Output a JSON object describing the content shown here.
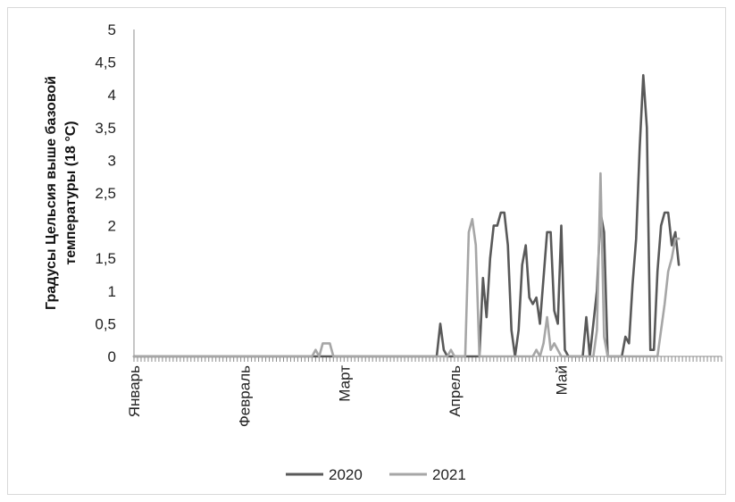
{
  "chart_data": {
    "type": "line",
    "title": "",
    "ylabel_lines": [
      "Градусы Цельсия выше базовой",
      "температуры (18 °С)"
    ],
    "xlabel": "",
    "ylim": [
      0,
      5
    ],
    "y_ticks": [
      "0",
      "0,5",
      "1",
      "1,5",
      "2",
      "2,5",
      "3",
      "3,5",
      "4",
      "4,5",
      "5"
    ],
    "x_range": [
      1,
      166
    ],
    "x_tick_labels": [
      {
        "label": "Январь",
        "day": 1
      },
      {
        "label": "Февраль",
        "day": 32
      },
      {
        "label": "Март",
        "day": 60
      },
      {
        "label": "Апрель",
        "day": 91
      },
      {
        "label": "Май",
        "day": 121
      }
    ],
    "grid": false,
    "legend_position": "bottom",
    "series": [
      {
        "name": "2020",
        "color": "#595959",
        "points": [
          [
            1,
            0
          ],
          [
            86,
            0
          ],
          [
            87,
            0.5
          ],
          [
            88,
            0.1
          ],
          [
            89,
            0
          ],
          [
            90,
            0
          ],
          [
            91,
            0
          ],
          [
            92,
            0
          ],
          [
            93,
            0
          ],
          [
            94,
            0
          ],
          [
            95,
            0
          ],
          [
            96,
            0
          ],
          [
            97,
            0
          ],
          [
            98,
            0
          ],
          [
            99,
            1.2
          ],
          [
            100,
            0.6
          ],
          [
            101,
            1.5
          ],
          [
            102,
            2
          ],
          [
            103,
            2
          ],
          [
            104,
            2.2
          ],
          [
            105,
            2.2
          ],
          [
            106,
            1.7
          ],
          [
            107,
            0.4
          ],
          [
            108,
            0
          ],
          [
            109,
            0.4
          ],
          [
            110,
            1.4
          ],
          [
            111,
            1.7
          ],
          [
            112,
            0.9
          ],
          [
            113,
            0.8
          ],
          [
            114,
            0.9
          ],
          [
            115,
            0.5
          ],
          [
            116,
            1.2
          ],
          [
            117,
            1.9
          ],
          [
            118,
            1.9
          ],
          [
            119,
            0.7
          ],
          [
            120,
            0.5
          ],
          [
            121,
            2
          ],
          [
            122,
            0.1
          ],
          [
            123,
            0
          ],
          [
            124,
            0
          ],
          [
            125,
            0
          ],
          [
            126,
            0
          ],
          [
            127,
            0
          ],
          [
            128,
            0.6
          ],
          [
            129,
            0
          ],
          [
            130,
            0.5
          ],
          [
            131,
            1
          ],
          [
            132,
            2.2
          ],
          [
            133,
            1.9
          ],
          [
            134,
            0
          ],
          [
            135,
            0
          ],
          [
            136,
            0
          ],
          [
            137,
            0
          ],
          [
            138,
            0
          ],
          [
            139,
            0.3
          ],
          [
            140,
            0.2
          ],
          [
            141,
            1.1
          ],
          [
            142,
            1.8
          ],
          [
            143,
            3.2
          ],
          [
            144,
            4.3
          ],
          [
            145,
            3.5
          ],
          [
            146,
            0.1
          ],
          [
            147,
            0.1
          ],
          [
            148,
            1.3
          ],
          [
            149,
            2
          ],
          [
            150,
            2.2
          ],
          [
            151,
            2.2
          ],
          [
            152,
            1.7
          ],
          [
            153,
            1.9
          ],
          [
            154,
            1.4
          ]
        ]
      },
      {
        "name": "2021",
        "color": "#a6a6a6",
        "points": [
          [
            1,
            0
          ],
          [
            51,
            0
          ],
          [
            52,
            0.1
          ],
          [
            53,
            0
          ],
          [
            54,
            0.2
          ],
          [
            55,
            0.2
          ],
          [
            56,
            0.2
          ],
          [
            57,
            0
          ],
          [
            58,
            0
          ],
          [
            81,
            0
          ],
          [
            82,
            0
          ],
          [
            83,
            0
          ],
          [
            84,
            0
          ],
          [
            85,
            0
          ],
          [
            86,
            0
          ],
          [
            87,
            0
          ],
          [
            88,
            0
          ],
          [
            89,
            0
          ],
          [
            90,
            0.1
          ],
          [
            91,
            0
          ],
          [
            92,
            0
          ],
          [
            93,
            0
          ],
          [
            94,
            0
          ],
          [
            95,
            1.9
          ],
          [
            96,
            2.1
          ],
          [
            97,
            1.7
          ],
          [
            98,
            0
          ],
          [
            99,
            0
          ],
          [
            112,
            0
          ],
          [
            113,
            0
          ],
          [
            114,
            0.1
          ],
          [
            115,
            0
          ],
          [
            116,
            0.2
          ],
          [
            117,
            0.6
          ],
          [
            118,
            0.1
          ],
          [
            119,
            0.2
          ],
          [
            120,
            0.1
          ],
          [
            121,
            0
          ],
          [
            122,
            0
          ],
          [
            129,
            0
          ],
          [
            130,
            0
          ],
          [
            131,
            0.4
          ],
          [
            132,
            2.8
          ],
          [
            133,
            0.3
          ],
          [
            134,
            0
          ],
          [
            135,
            0
          ],
          [
            148,
            0
          ],
          [
            149,
            0.4
          ],
          [
            150,
            0.8
          ],
          [
            151,
            1.3
          ],
          [
            152,
            1.5
          ],
          [
            153,
            1.8
          ],
          [
            154,
            1.8
          ]
        ]
      }
    ]
  }
}
